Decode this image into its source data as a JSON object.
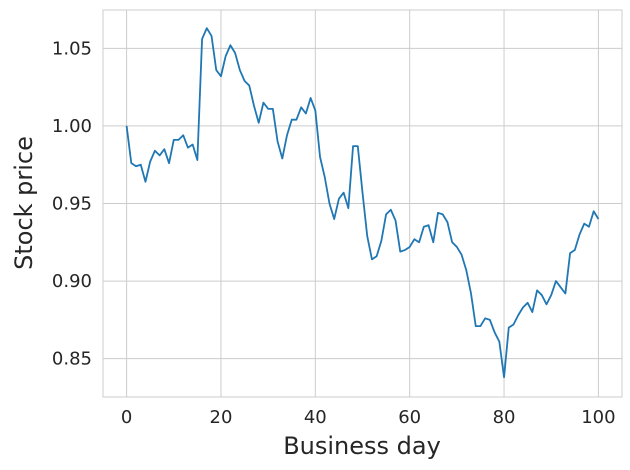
{
  "chart_data": {
    "type": "line",
    "xlabel": "Business day",
    "ylabel": "Stock price",
    "xlim": [
      -5,
      105
    ],
    "ylim": [
      0.8253,
      1.0747
    ],
    "grid": true,
    "xticks": [
      0,
      20,
      40,
      60,
      80,
      100
    ],
    "yticks": [
      0.85,
      0.9,
      0.95,
      1.0,
      1.05
    ],
    "xtick_labels": [
      "0",
      "20",
      "40",
      "60",
      "80",
      "100"
    ],
    "ytick_labels": [
      "0.85",
      "0.90",
      "0.95",
      "1.00",
      "1.05"
    ],
    "series": [
      {
        "color": "#1f77b4",
        "x": [
          0,
          1,
          2,
          3,
          4,
          5,
          6,
          7,
          8,
          9,
          10,
          11,
          12,
          13,
          14,
          15,
          16,
          17,
          18,
          19,
          20,
          21,
          22,
          23,
          24,
          25,
          26,
          27,
          28,
          29,
          30,
          31,
          32,
          33,
          34,
          35,
          36,
          37,
          38,
          39,
          40,
          41,
          42,
          43,
          44,
          45,
          46,
          47,
          48,
          49,
          50,
          51,
          52,
          53,
          54,
          55,
          56,
          57,
          58,
          59,
          60,
          61,
          62,
          63,
          64,
          65,
          66,
          67,
          68,
          69,
          70,
          71,
          72,
          73,
          74,
          75,
          76,
          77,
          78,
          79,
          80,
          81,
          82,
          83,
          84,
          85,
          86,
          87,
          88,
          89,
          90,
          91,
          92,
          93,
          94,
          95,
          96,
          97,
          98,
          99,
          100
        ],
        "values": [
          1.0,
          0.976,
          0.974,
          0.975,
          0.964,
          0.977,
          0.984,
          0.981,
          0.985,
          0.976,
          0.991,
          0.991,
          0.994,
          0.986,
          0.988,
          0.978,
          1.056,
          1.063,
          1.058,
          1.036,
          1.032,
          1.045,
          1.052,
          1.047,
          1.036,
          1.029,
          1.026,
          1.013,
          1.002,
          1.015,
          1.011,
          1.011,
          0.99,
          0.979,
          0.994,
          1.004,
          1.004,
          1.012,
          1.008,
          1.018,
          1.01,
          0.98,
          0.967,
          0.95,
          0.94,
          0.953,
          0.957,
          0.947,
          0.987,
          0.987,
          0.957,
          0.929,
          0.914,
          0.916,
          0.926,
          0.943,
          0.946,
          0.939,
          0.919,
          0.92,
          0.922,
          0.927,
          0.925,
          0.935,
          0.936,
          0.925,
          0.944,
          0.943,
          0.938,
          0.925,
          0.922,
          0.917,
          0.907,
          0.892,
          0.871,
          0.871,
          0.876,
          0.875,
          0.867,
          0.861,
          0.838,
          0.87,
          0.872,
          0.878,
          0.883,
          0.886,
          0.88,
          0.894,
          0.891,
          0.885,
          0.891,
          0.9,
          0.896,
          0.892,
          0.918,
          0.92,
          0.93,
          0.937,
          0.935,
          0.945,
          0.94
        ]
      }
    ]
  }
}
